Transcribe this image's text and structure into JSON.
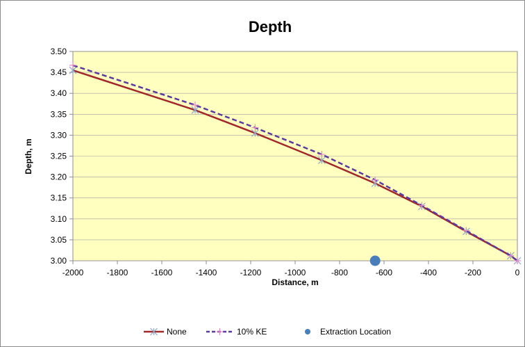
{
  "chart_data": {
    "type": "line",
    "title": "Depth",
    "xlabel": "Distance, m",
    "ylabel": "Depth, m",
    "xlim": [
      -2000,
      0
    ],
    "ylim": [
      3.0,
      3.5
    ],
    "xticks": [
      -2000,
      -1800,
      -1600,
      -1400,
      -1200,
      -1000,
      -800,
      -600,
      -400,
      -200,
      0
    ],
    "yticks": [
      3.0,
      3.05,
      3.1,
      3.15,
      3.2,
      3.25,
      3.3,
      3.35,
      3.4,
      3.45,
      3.5
    ],
    "legend_position": "bottom",
    "plot_background": "#FFFFC0",
    "series": [
      {
        "name": "None",
        "color": "#A0282B",
        "line_style": "solid",
        "marker": "asterisk",
        "marker_color": "#8EA6C8",
        "x": [
          -2000,
          -1450,
          -1180,
          -880,
          -640,
          -430,
          -230,
          -30,
          0
        ],
        "y": [
          3.455,
          3.36,
          3.305,
          3.24,
          3.185,
          3.13,
          3.07,
          3.012,
          3.0
        ]
      },
      {
        "name": "10% KE",
        "color": "#5B3AA0",
        "line_style": "dashed",
        "marker": "plus",
        "marker_color": "#E08CC8",
        "x": [
          -2000,
          -1450,
          -1180,
          -880,
          -640,
          -430,
          -230,
          -30,
          0
        ],
        "y": [
          3.467,
          3.372,
          3.318,
          3.254,
          3.193,
          3.132,
          3.072,
          3.012,
          3.0
        ]
      },
      {
        "name": "Extraction Location",
        "color": "#4A7EBB",
        "marker": "circle",
        "x": [
          -640
        ],
        "y": [
          3.0
        ]
      }
    ]
  }
}
